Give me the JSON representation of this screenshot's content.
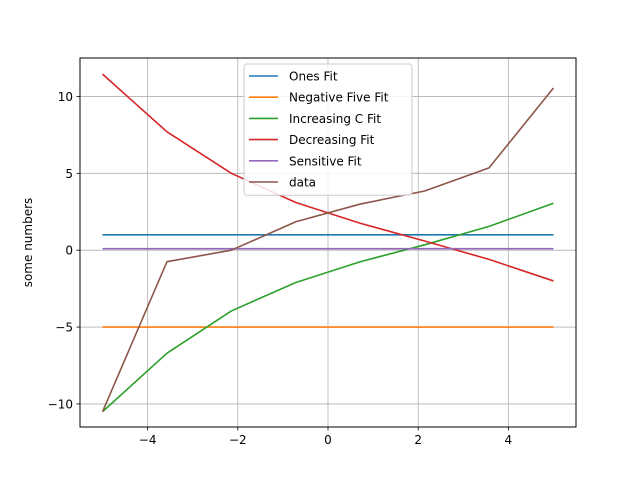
{
  "chart_data": {
    "type": "line",
    "title": "",
    "xlabel": "",
    "ylabel": "some numbers",
    "xlim": [
      -5.5,
      5.5
    ],
    "ylim": [
      -11.5,
      12.5
    ],
    "xticks": [
      -4,
      -2,
      0,
      2,
      4
    ],
    "yticks": [
      -10,
      -5,
      0,
      5,
      10
    ],
    "xtick_labels": [
      "−4",
      "−2",
      "0",
      "2",
      "4"
    ],
    "ytick_labels": [
      "−10",
      "−5",
      "0",
      "5",
      "10"
    ],
    "grid": true,
    "legend_position": "upper-center",
    "series": [
      {
        "name": "Ones Fit",
        "color": "#1f77b4",
        "x": [
          -5,
          5
        ],
        "y": [
          1,
          1
        ]
      },
      {
        "name": "Negative Five Fit",
        "color": "#ff7f0e",
        "x": [
          -5,
          5
        ],
        "y": [
          -5,
          -5
        ]
      },
      {
        "name": "Increasing C Fit",
        "color": "#2ca02c",
        "x": [
          -5,
          -3.571,
          -2.143,
          -0.714,
          0.714,
          2.143,
          3.571,
          5
        ],
        "y": [
          -10.5,
          -6.7,
          -3.95,
          -2.1,
          -0.75,
          0.35,
          1.55,
          3.05
        ]
      },
      {
        "name": "Decreasing Fit",
        "color": "#d62728",
        "x": [
          -5,
          -3.571,
          -2.143,
          -0.714,
          0.714,
          2.143,
          3.571,
          5
        ],
        "y": [
          11.45,
          7.7,
          5.0,
          3.1,
          1.75,
          0.6,
          -0.6,
          -2.0
        ]
      },
      {
        "name": "Sensitive Fit",
        "color": "#9467bd",
        "x": [
          -5,
          5
        ],
        "y": [
          0.1,
          0.1
        ]
      },
      {
        "name": "data",
        "color": "#8c564b",
        "x": [
          -5,
          -3.571,
          -2.143,
          -0.714,
          0.714,
          2.143,
          3.571,
          5
        ],
        "y": [
          -10.5,
          -0.75,
          0.0,
          1.85,
          3.0,
          3.85,
          5.35,
          10.55
        ]
      }
    ]
  }
}
